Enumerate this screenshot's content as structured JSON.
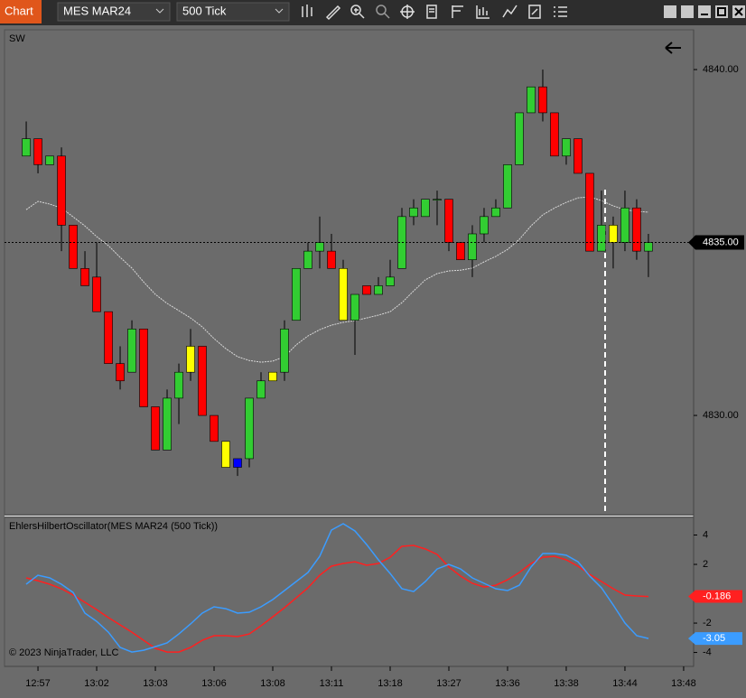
{
  "toolbar": {
    "app": "Chart",
    "instrument": "MES MAR24",
    "interval": "500 Tick"
  },
  "copyright": "© 2023 NinjaTrader, LLC",
  "xlim": [
    -1.85,
    56.85
  ],
  "xticks": [
    {
      "value": 1,
      "label": "12:57"
    },
    {
      "value": 6,
      "label": "13:02"
    },
    {
      "value": 11,
      "label": "13:03"
    },
    {
      "value": 16,
      "label": "13:06"
    },
    {
      "value": 21,
      "label": "13:08"
    },
    {
      "value": 26,
      "label": "13:11"
    },
    {
      "value": 31,
      "label": "13:18"
    },
    {
      "value": 36,
      "label": "13:27"
    },
    {
      "value": 41,
      "label": "13:36"
    },
    {
      "value": 46,
      "label": "13:38"
    },
    {
      "value": 51,
      "label": "13:44"
    },
    {
      "value": 56,
      "label": "13:48"
    }
  ],
  "chart_data": [
    {
      "type": "candlestick",
      "title": "SW",
      "ylim": [
        4827.13,
        4841.15
      ],
      "yticks": [
        {
          "value": 4840,
          "label": "4840.00"
        },
        {
          "value": 4830,
          "label": "4830.00"
        }
      ],
      "current_price": {
        "value": 4835,
        "label": "4835.00"
      },
      "open": [
        4837.5,
        4838,
        4837.25,
        4837.5,
        4835.5,
        4834.25,
        4834,
        4833,
        4831.5,
        4831.25,
        4832.5,
        4830.25,
        4829,
        4830.5,
        4831.25,
        4832,
        4830,
        4829.25,
        4828.75,
        4828.75,
        4830.5,
        4831,
        4831.25,
        4832.75,
        4834.25,
        4834.75,
        4834.75,
        4834.25,
        4832.75,
        4833.75,
        4833.5,
        4833.75,
        4834.25,
        4835.75,
        4835.75,
        4836.25,
        4836.25,
        4835,
        4834.5,
        4835.25,
        4835.75,
        4836,
        4837.25,
        4838.75,
        4839.5,
        4838.75,
        4837.5,
        4838,
        4837,
        4834.75,
        4835.5,
        4835,
        4836,
        4834.75
      ],
      "high": [
        4838.5,
        4838,
        4837.5,
        4837.75,
        4835.5,
        4834.75,
        4835,
        4833,
        4832,
        4832.75,
        4832.5,
        4830.25,
        4830.75,
        4831.5,
        4832.5,
        4832,
        4830,
        4829.25,
        4828.75,
        4830.5,
        4831.25,
        4831.25,
        4832.75,
        4834.25,
        4835,
        4835.75,
        4835.25,
        4834.5,
        4833.5,
        4833.75,
        4834,
        4834.5,
        4836,
        4836.25,
        4836.25,
        4836.5,
        4836.25,
        4835,
        4835.5,
        4836,
        4836.25,
        4837.25,
        4838.75,
        4839.5,
        4840,
        4838.75,
        4838,
        4838,
        4837,
        4836.5,
        4835.75,
        4836.5,
        4836.25,
        4835.25
      ],
      "low": [
        4837.5,
        4837,
        4837.25,
        4834.75,
        4834.25,
        4833.75,
        4833,
        4831.5,
        4830.75,
        4831.25,
        4830.25,
        4829,
        4829,
        4829.75,
        4831,
        4830,
        4829.25,
        4828.5,
        4828.25,
        4828.5,
        4830.5,
        4831,
        4831,
        4832.75,
        4834.25,
        4834.25,
        4834.25,
        4832.75,
        4831.75,
        4833.5,
        4833.5,
        4833.75,
        4834.25,
        4835.5,
        4835.75,
        4835.5,
        4834.75,
        4834.5,
        4834,
        4835,
        4835.75,
        4836,
        4837.25,
        4838.75,
        4838.5,
        4837.5,
        4837.25,
        4837,
        4834.75,
        4834.75,
        4834.25,
        4834.75,
        4834.5,
        4834
      ],
      "close": [
        4838,
        4837.25,
        4837.5,
        4835.5,
        4834.25,
        4833.75,
        4833,
        4831.5,
        4831,
        4832.5,
        4830.25,
        4829,
        4830.5,
        4831.25,
        4832,
        4830,
        4829.25,
        4828.5,
        4828.5,
        4830.5,
        4831,
        4831.25,
        4832.5,
        4834.25,
        4834.75,
        4835,
        4834.25,
        4832.75,
        4833.5,
        4833.5,
        4833.75,
        4834,
        4835.75,
        4836,
        4836.25,
        4836.25,
        4835,
        4834.5,
        4835.25,
        4835.75,
        4836,
        4837.25,
        4838.75,
        4839.5,
        4838.75,
        4837.5,
        4838,
        4837,
        4834.75,
        4835.5,
        4835,
        4836,
        4834.75,
        4835
      ],
      "colors": [
        "#32cd32",
        "#ff0000",
        "#32cd32",
        "#ff0000",
        "#ff0000",
        "#ff0000",
        "#ff0000",
        "#ff0000",
        "#ff0000",
        "#32cd32",
        "#ff0000",
        "#ff0000",
        "#32cd32",
        "#32cd32",
        "#ffff00",
        "#ff0000",
        "#ff0000",
        "#ffff00",
        "#0000ff",
        "#32cd32",
        "#32cd32",
        "#ffff00",
        "#32cd32",
        "#32cd32",
        "#32cd32",
        "#32cd32",
        "#ff0000",
        "#ffff00",
        "#32cd32",
        "#ff0000",
        "#32cd32",
        "#32cd32",
        "#32cd32",
        "#32cd32",
        "#32cd32",
        "#32cd32",
        "#ff0000",
        "#ff0000",
        "#32cd32",
        "#32cd32",
        "#32cd32",
        "#32cd32",
        "#32cd32",
        "#32cd32",
        "#ff0000",
        "#ff0000",
        "#32cd32",
        "#ff0000",
        "#ff0000",
        "#32cd32",
        "#ffff00",
        "#32cd32",
        "#ff0000",
        "#32cd32"
      ],
      "series": [
        {
          "color": "#d8d8d8",
          "values": [
            4835.95,
            4836.19,
            4836.11,
            4836.0,
            4835.74,
            4835.48,
            4835.17,
            4834.91,
            4834.57,
            4834.26,
            4833.86,
            4833.5,
            4833.24,
            4833.03,
            4832.82,
            4832.56,
            4832.22,
            4831.93,
            4831.7,
            4831.59,
            4831.54,
            4831.57,
            4831.7,
            4832.04,
            4832.3,
            4832.48,
            4832.61,
            4832.69,
            4832.74,
            4832.82,
            4832.9,
            4833.0,
            4833.26,
            4833.6,
            4833.92,
            4834.1,
            4834.18,
            4834.2,
            4834.26,
            4834.44,
            4834.6,
            4834.8,
            4835.09,
            4835.48,
            4835.8,
            4836.0,
            4836.16,
            4836.29,
            4836.32,
            4836.21,
            4836.06,
            4835.95,
            4835.9,
            4835.88
          ]
        }
      ]
    },
    {
      "type": "line",
      "title": "EhlersHilbertOscillator(MES MAR24 (500 Tick))",
      "ylim": [
        -4.95,
        5.2
      ],
      "yticks": [
        4,
        2,
        -2,
        -4
      ],
      "series": [
        {
          "color": "#ff2020",
          "values": [
            1.08,
            0.89,
            0.65,
            0.34,
            -0.09,
            -0.58,
            -1.08,
            -1.63,
            -2.12,
            -2.62,
            -3.17,
            -3.72,
            -3.97,
            -3.97,
            -3.66,
            -3.17,
            -2.86,
            -2.86,
            -2.92,
            -2.74,
            -2.18,
            -1.57,
            -0.95,
            -0.28,
            0.4,
            1.26,
            1.88,
            2.06,
            2.18,
            1.94,
            2.06,
            2.49,
            3.23,
            3.29,
            3.05,
            2.68,
            1.82,
            1.2,
            0.71,
            0.46,
            0.58,
            0.95,
            1.45,
            2.06,
            2.49,
            2.55,
            2.31,
            1.88,
            1.32,
            0.83,
            0.34,
            -0.09,
            -0.15,
            -0.186
          ]
        },
        {
          "color": "#3b9cff",
          "values": [
            0.65,
            1.26,
            1.08,
            0.65,
            0.09,
            -1.32,
            -1.88,
            -2.62,
            -3.66,
            -3.97,
            -3.85,
            -3.6,
            -3.35,
            -2.74,
            -2.06,
            -1.32,
            -0.89,
            -1.02,
            -1.32,
            -1.26,
            -0.89,
            -0.4,
            0.22,
            0.83,
            1.45,
            2.55,
            4.34,
            4.77,
            4.28,
            3.35,
            2.31,
            1.38,
            0.34,
            0.15,
            0.83,
            1.69,
            2.0,
            1.69,
            1.08,
            0.71,
            0.34,
            0.22,
            0.58,
            1.82,
            2.74,
            2.74,
            2.62,
            2.18,
            1.2,
            0.4,
            -0.77,
            -2.0,
            -2.86,
            -3.05
          ]
        }
      ]
    }
  ]
}
